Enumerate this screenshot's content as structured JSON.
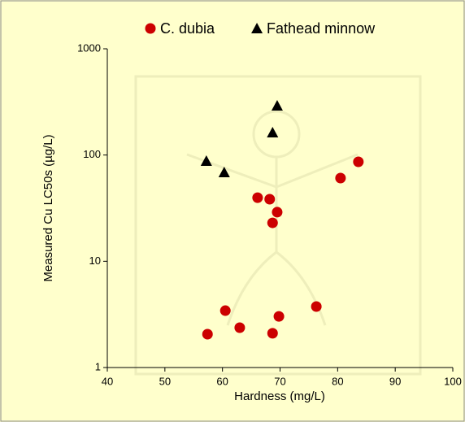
{
  "chart_data": {
    "type": "scatter",
    "x_label": "Hardness (mg/L)",
    "y_label": "Measured Cu LC50s (µg/L)",
    "xlim": [
      40,
      100
    ],
    "xticks": [
      40,
      50,
      60,
      70,
      80,
      90,
      100
    ],
    "ylim": [
      1,
      1000
    ],
    "yticks": [
      1,
      10,
      100,
      1000
    ],
    "y_scale": "log",
    "legend": "top",
    "series": [
      {
        "name": "C. dubia",
        "color": "#cc0000",
        "marker": "circle",
        "x": [
          57.4,
          60.5,
          63.0,
          68.7,
          69.8,
          76.3,
          66.1,
          68.2,
          69.5,
          68.7,
          80.5,
          83.6
        ],
        "values": [
          2.06,
          3.43,
          2.37,
          2.1,
          3.03,
          3.75,
          39.7,
          38.4,
          29,
          23,
          60.7,
          86.3
        ]
      },
      {
        "name": "Fathead minnow",
        "color": "#000000",
        "marker": "triangle",
        "x": [
          57.2,
          60.3,
          68.7,
          69.5
        ],
        "values": [
          87.9,
          68.7,
          163,
          291
        ]
      }
    ]
  }
}
